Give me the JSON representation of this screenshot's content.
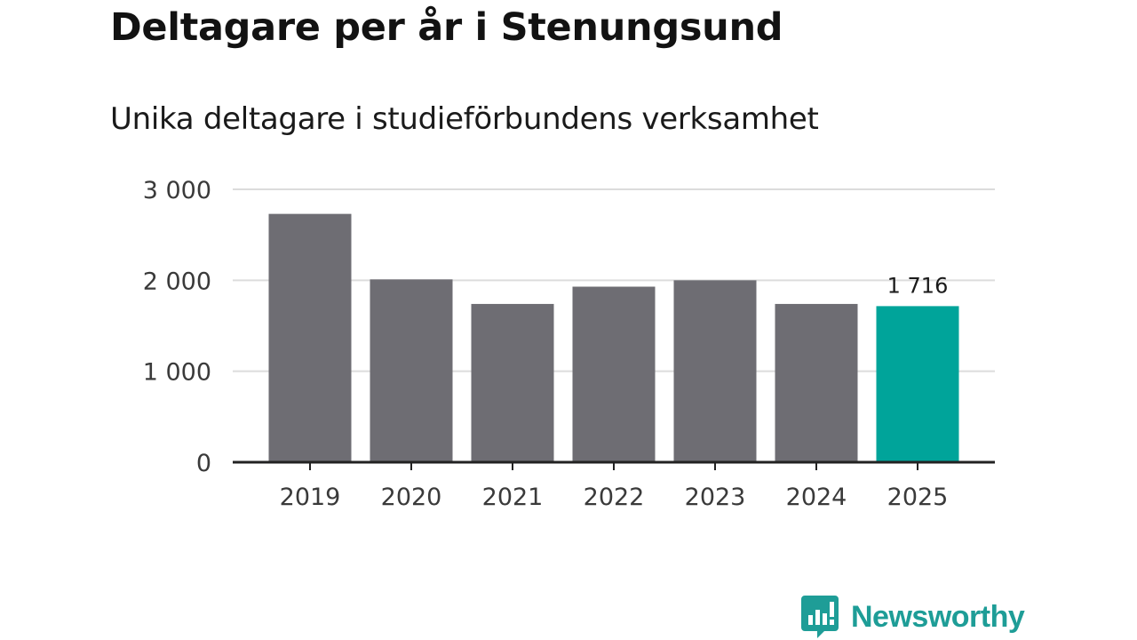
{
  "chart_data": {
    "type": "bar",
    "title": "Deltagare per år i Stenungsund",
    "subtitle": "Unika deltagare i studieförbundens verksamhet",
    "categories": [
      "2019",
      "2020",
      "2021",
      "2022",
      "2023",
      "2024",
      "2025"
    ],
    "values": [
      2730,
      2010,
      1740,
      1930,
      2000,
      1740,
      1716
    ],
    "y_ticks": [
      0,
      1000,
      2000,
      3000
    ],
    "y_tick_labels": [
      "0",
      "1 000",
      "2 000",
      "3 000"
    ],
    "ylim": [
      0,
      3000
    ],
    "grid": true,
    "highlight_index": 6,
    "highlight_label": "1 716",
    "xlabel": "",
    "ylabel": ""
  },
  "colors": {
    "bar": "#6e6d73",
    "highlight": "#00a49a",
    "grid": "#dcdcdc",
    "axis": "#222222",
    "brand": "#1e9d97"
  },
  "brand": {
    "name": "Newsworthy",
    "icon": "newsworthy-logo-icon"
  }
}
